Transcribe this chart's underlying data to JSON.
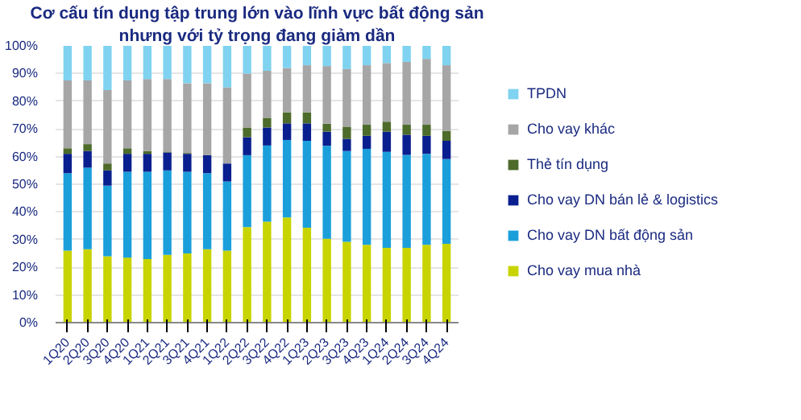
{
  "chart_data": {
    "type": "bar",
    "stacked": true,
    "title": "Cơ cấu tín dụng tập trung lớn vào lĩnh vực bất động sản",
    "subtitle": "nhưng với tỷ trọng đang giảm dần",
    "categories": [
      "1Q20",
      "2Q20",
      "3Q20",
      "4Q20",
      "1Q21",
      "2Q21",
      "3Q21",
      "4Q21",
      "1Q22",
      "2Q22",
      "3Q22",
      "4Q22",
      "1Q23",
      "2Q23",
      "3Q23",
      "4Q23",
      "1Q24",
      "2Q24",
      "3Q24",
      "4Q24"
    ],
    "series": [
      {
        "name": "Cho vay mua nhà",
        "color": "#c8d400",
        "values": [
          26,
          26.5,
          24,
          23.5,
          23,
          24.5,
          25,
          26.5,
          26,
          34.5,
          36.5,
          38,
          34.3,
          30.3,
          29.2,
          28.1,
          27,
          27,
          28.1,
          28.5
        ]
      },
      {
        "name": "Cho vay DN bất động sản",
        "color": "#1a9fdb",
        "values": [
          28,
          29.5,
          25.5,
          31,
          31.5,
          30.5,
          29.5,
          27.5,
          25,
          26,
          27.5,
          28,
          31.4,
          33.6,
          32.8,
          34.7,
          34.7,
          33.6,
          32.9,
          30.6
        ]
      },
      {
        "name": "Cho vay DN bán lẻ & logistics",
        "color": "#0a1f8f",
        "values": [
          7,
          6,
          5.5,
          6.5,
          6.5,
          6.5,
          6.5,
          6.5,
          6.5,
          6.5,
          6.5,
          6,
          6.3,
          5.1,
          4.4,
          4.7,
          7.3,
          7.3,
          6.5,
          6.6
        ]
      },
      {
        "name": "Thẻ tín dụng",
        "color": "#4d6b2a",
        "values": [
          2,
          2.5,
          2.5,
          2,
          1,
          0.3,
          0.3,
          0,
          0,
          3.5,
          3.5,
          4,
          4,
          2.9,
          4.4,
          4,
          3.6,
          3.6,
          4,
          3.6
        ]
      },
      {
        "name": "Cho vay khác",
        "color": "#a6a6a6",
        "values": [
          24.5,
          23,
          26.5,
          24.5,
          26,
          26.2,
          25.2,
          26,
          27.5,
          19.5,
          17,
          16,
          17,
          20.8,
          20.8,
          21.5,
          21.2,
          22.7,
          23.8,
          23.7
        ]
      },
      {
        "name": "TPDN",
        "color": "#7fd3f0",
        "values": [
          12.5,
          12.5,
          16,
          12.5,
          12,
          12,
          13.5,
          13.5,
          15,
          10,
          9,
          8,
          7,
          7.3,
          8.4,
          7,
          6.2,
          5.8,
          4.7,
          7
        ]
      }
    ],
    "ylim": [
      0,
      100
    ],
    "yticks": [
      {
        "value": 0,
        "label": "0%"
      },
      {
        "value": 10,
        "label": "10%"
      },
      {
        "value": 20,
        "label": "20%"
      },
      {
        "value": 30,
        "label": "30%"
      },
      {
        "value": 40,
        "label": "40%"
      },
      {
        "value": 50,
        "label": "50%"
      },
      {
        "value": 60,
        "label": "60%"
      },
      {
        "value": 70,
        "label": "70%"
      },
      {
        "value": 80,
        "label": "80%"
      },
      {
        "value": 90,
        "label": "90%"
      },
      {
        "value": 100,
        "label": "100%"
      }
    ],
    "grid": "y",
    "legend": "right"
  }
}
